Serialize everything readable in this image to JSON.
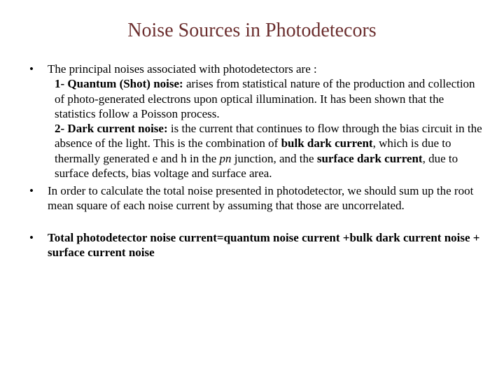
{
  "slide": {
    "title": "Noise Sources in Photodetecors",
    "title_color": "#6b2e2e",
    "title_fontsize": 28,
    "body_fontsize": 17,
    "body_color": "#000000",
    "background_color": "#ffffff",
    "font_family": "Times New Roman",
    "bullets": [
      {
        "lead": "The principal noises associated with photodetectors are :",
        "subs": [
          {
            "label_bold": "1- Quantum (Shot) noise:",
            "text": " arises from statistical nature of the production and collection of photo-generated electrons upon optical illumination. It has been shown that the statistics follow a Poisson process."
          },
          {
            "label_bold": "2- Dark current noise:",
            "text_a": " is the current that continues to flow through the bias circuit in the absence of the light. This is the combination of ",
            "bold_b": "bulk dark current",
            "text_c": ", which is due to thermally generated e and h in the ",
            "italic_d": "pn",
            "text_e": " junction, and the ",
            "bold_f": "surface dark current",
            "text_g": ", due to surface defects, bias voltage and surface area."
          }
        ]
      },
      {
        "lead": "In order to calculate the total noise presented in photodetector, we should sum up the root mean square of each noise current by assuming that those are uncorrelated."
      },
      {
        "bold_lead": "Total photodetector noise current=quantum noise current +bulk dark current noise + surface current noise"
      }
    ]
  }
}
